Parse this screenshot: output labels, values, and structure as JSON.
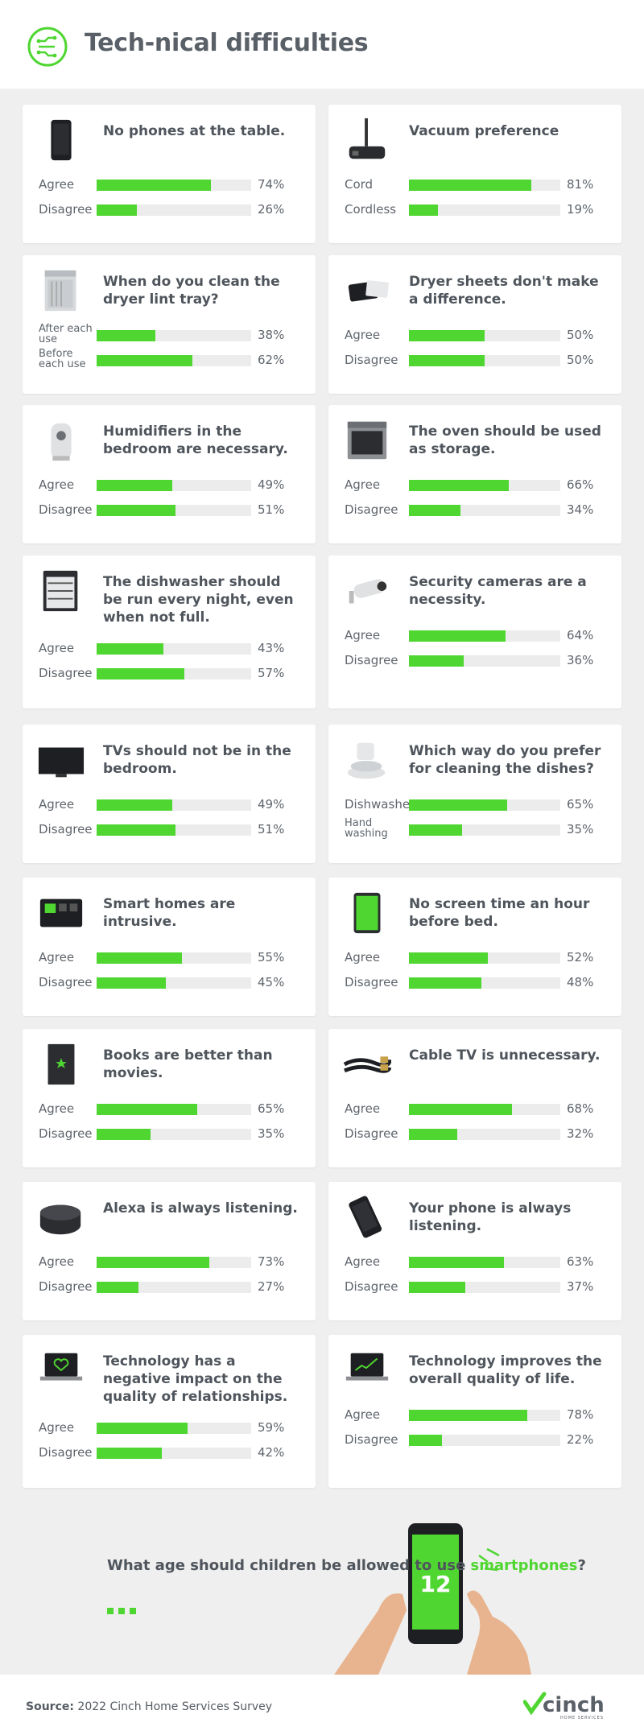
{
  "header": {
    "title": "Tech-nical difficulties"
  },
  "chart_data": {
    "type": "bar",
    "questions": [
      {
        "question": "No phones at the table.",
        "icon": "smartphone-icon",
        "options": [
          {
            "label": "Agree",
            "value": 74
          },
          {
            "label": "Disagree",
            "value": 26
          }
        ]
      },
      {
        "question": "Vacuum preference",
        "icon": "vacuum-icon",
        "options": [
          {
            "label": "Cord",
            "value": 81
          },
          {
            "label": "Cordless",
            "value": 19
          }
        ]
      },
      {
        "question": "When do you clean the dryer lint tray?",
        "icon": "dryer-icon",
        "options": [
          {
            "label": "After each use",
            "value": 38
          },
          {
            "label": "Before each use",
            "value": 62
          }
        ]
      },
      {
        "question": "Dryer sheets don't make a difference.",
        "icon": "dryer-sheets-icon",
        "options": [
          {
            "label": "Agree",
            "value": 50
          },
          {
            "label": "Disagree",
            "value": 50
          }
        ]
      },
      {
        "question": "Humidifiers in the bedroom are necessary.",
        "icon": "humidifier-icon",
        "options": [
          {
            "label": "Agree",
            "value": 49
          },
          {
            "label": "Disagree",
            "value": 51
          }
        ]
      },
      {
        "question": "The oven should be used as storage.",
        "icon": "oven-icon",
        "options": [
          {
            "label": "Agree",
            "value": 66
          },
          {
            "label": "Disagree",
            "value": 34
          }
        ]
      },
      {
        "question": "The dishwasher should be run every night, even when not full.",
        "icon": "dishwasher-icon",
        "options": [
          {
            "label": "Agree",
            "value": 43
          },
          {
            "label": "Disagree",
            "value": 57
          }
        ]
      },
      {
        "question": "Security cameras are a necessity.",
        "icon": "security-camera-icon",
        "options": [
          {
            "label": "Agree",
            "value": 64
          },
          {
            "label": "Disagree",
            "value": 36
          }
        ]
      },
      {
        "question": "TVs should not be in the bedroom.",
        "icon": "tv-icon",
        "options": [
          {
            "label": "Agree",
            "value": 49
          },
          {
            "label": "Disagree",
            "value": 51
          }
        ]
      },
      {
        "question": "Which way do you prefer for cleaning the dishes?",
        "icon": "dishes-icon",
        "options": [
          {
            "label": "Dishwasher",
            "value": 65
          },
          {
            "label": "Hand washing",
            "value": 35
          }
        ]
      },
      {
        "question": "Smart homes are intrusive.",
        "icon": "smart-home-panel-icon",
        "options": [
          {
            "label": "Agree",
            "value": 55
          },
          {
            "label": "Disagree",
            "value": 45
          }
        ]
      },
      {
        "question": "No screen time an hour before bed.",
        "icon": "tablet-icon",
        "options": [
          {
            "label": "Agree",
            "value": 52
          },
          {
            "label": "Disagree",
            "value": 48
          }
        ]
      },
      {
        "question": "Books are better than movies.",
        "icon": "book-icon",
        "options": [
          {
            "label": "Agree",
            "value": 65
          },
          {
            "label": "Disagree",
            "value": 35
          }
        ]
      },
      {
        "question": "Cable TV is unnecessary.",
        "icon": "cable-icon",
        "options": [
          {
            "label": "Agree",
            "value": 68
          },
          {
            "label": "Disagree",
            "value": 32
          }
        ]
      },
      {
        "question": "Alexa is always listening.",
        "icon": "smart-speaker-icon",
        "options": [
          {
            "label": "Agree",
            "value": 73
          },
          {
            "label": "Disagree",
            "value": 27
          }
        ]
      },
      {
        "question": "Your phone is always listening.",
        "icon": "phone-listening-icon",
        "options": [
          {
            "label": "Agree",
            "value": 63
          },
          {
            "label": "Disagree",
            "value": 37
          }
        ]
      },
      {
        "question": "Technology has a negative impact on the quality of relationships.",
        "icon": "laptop-heart-icon",
        "options": [
          {
            "label": "Agree",
            "value": 59
          },
          {
            "label": "Disagree",
            "value": 42
          }
        ]
      },
      {
        "question": "Technology improves the overall quality of life.",
        "icon": "laptop-chart-icon",
        "options": [
          {
            "label": "Agree",
            "value": 78
          },
          {
            "label": "Disagree",
            "value": 22
          }
        ]
      }
    ],
    "value_suffix": "%",
    "bar_color": "#4fd631",
    "track_color": "#ececec",
    "xlim": [
      0,
      100
    ]
  },
  "bottom": {
    "question_before": "What age should children be allowed to use ",
    "question_highlight": "smartphones",
    "question_after": "?",
    "answer": "12",
    "icon": "hand-holding-phone-icon"
  },
  "footer": {
    "source_label": "Source:",
    "source_text": "2022 Cinch Home Services Survey",
    "brand": "cinch",
    "brand_tagline": "HOME SERVICES"
  },
  "colors": {
    "accent": "#4fd631",
    "text": "#555b63",
    "background": "#efefef"
  }
}
